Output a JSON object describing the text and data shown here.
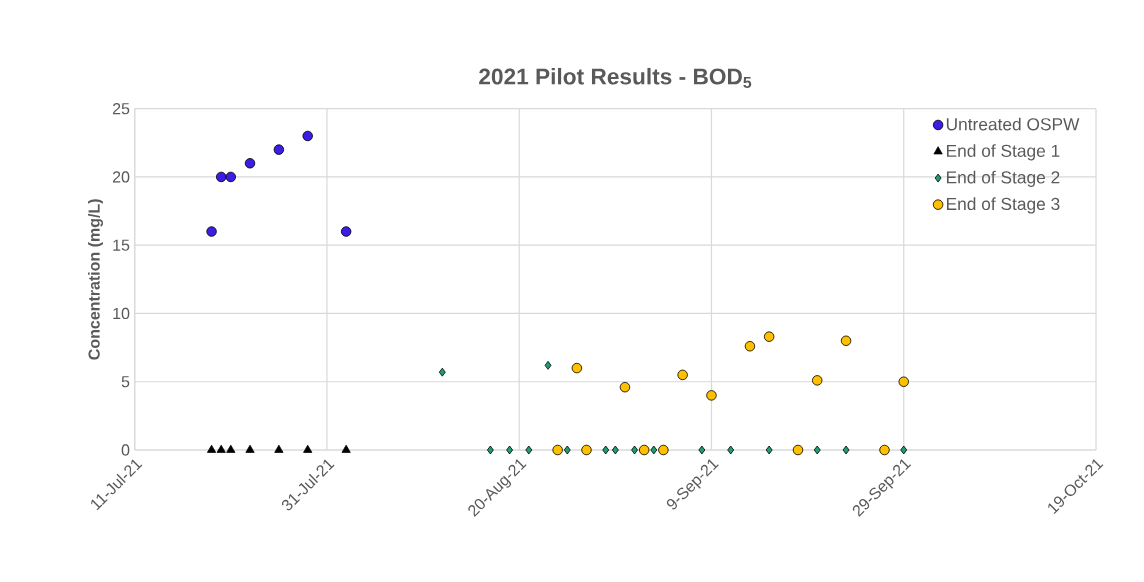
{
  "chart_data": {
    "type": "scatter",
    "title": "2021 Pilot Results - BOD$_{5}$",
    "ylabel": "Concentration (mg/L)",
    "xlim": [
      "2021-07-11",
      "2021-10-19"
    ],
    "xticks": [
      {
        "value": "2021-07-11",
        "label": "11-Jul-21"
      },
      {
        "value": "2021-07-31",
        "label": "31-Jul-21"
      },
      {
        "value": "2021-08-20",
        "label": "20-Aug-21"
      },
      {
        "value": "2021-09-09",
        "label": "9-Sep-21"
      },
      {
        "value": "2021-09-29",
        "label": "29-Sep-21"
      },
      {
        "value": "2021-10-19",
        "label": "19-Oct-21"
      }
    ],
    "ylim": [
      0,
      25
    ],
    "yticks": [
      0,
      5,
      10,
      15,
      20,
      25
    ],
    "grid": true,
    "legend": "top right",
    "series": [
      {
        "name": "Untreated OSPW",
        "color": "#3a1ee6",
        "marker": "circle",
        "x": [
          "2021-07-19",
          "2021-07-20",
          "2021-07-21",
          "2021-07-23",
          "2021-07-26",
          "2021-07-29",
          "2021-08-02"
        ],
        "values": [
          16,
          20,
          20,
          21,
          22,
          23,
          16
        ]
      },
      {
        "name": "End of Stage 1",
        "color": "#000000",
        "marker": "triangle",
        "x": [
          "2021-07-19",
          "2021-07-20",
          "2021-07-21",
          "2021-07-23",
          "2021-07-26",
          "2021-07-29",
          "2021-08-02"
        ],
        "values": [
          0,
          0,
          0,
          0,
          0,
          0,
          0
        ]
      },
      {
        "name": "End of Stage 2",
        "color": "#1e9e6e",
        "marker": "diamond",
        "x": [
          "2021-08-12",
          "2021-08-17",
          "2021-08-19",
          "2021-08-21",
          "2021-08-23",
          "2021-08-25",
          "2021-08-29",
          "2021-08-30",
          "2021-09-01",
          "2021-09-03",
          "2021-09-08",
          "2021-09-11",
          "2021-09-15",
          "2021-09-20",
          "2021-09-23",
          "2021-09-29"
        ],
        "values": [
          5.7,
          0,
          0,
          0,
          6.2,
          0,
          0,
          0,
          0,
          0,
          0,
          0,
          0,
          0,
          0,
          0
        ]
      },
      {
        "name": "End of Stage 3",
        "color": "#ffc000",
        "marker": "circle",
        "x": [
          "2021-08-24",
          "2021-08-26",
          "2021-08-27",
          "2021-08-31",
          "2021-09-02",
          "2021-09-04",
          "2021-09-06",
          "2021-09-09",
          "2021-09-13",
          "2021-09-15",
          "2021-09-18",
          "2021-09-20",
          "2021-09-23",
          "2021-09-27",
          "2021-09-29"
        ],
        "values": [
          0,
          6.0,
          0,
          4.6,
          0,
          0,
          5.5,
          4.0,
          7.6,
          8.3,
          0,
          5.1,
          8.0,
          0,
          5.0
        ]
      }
    ]
  }
}
